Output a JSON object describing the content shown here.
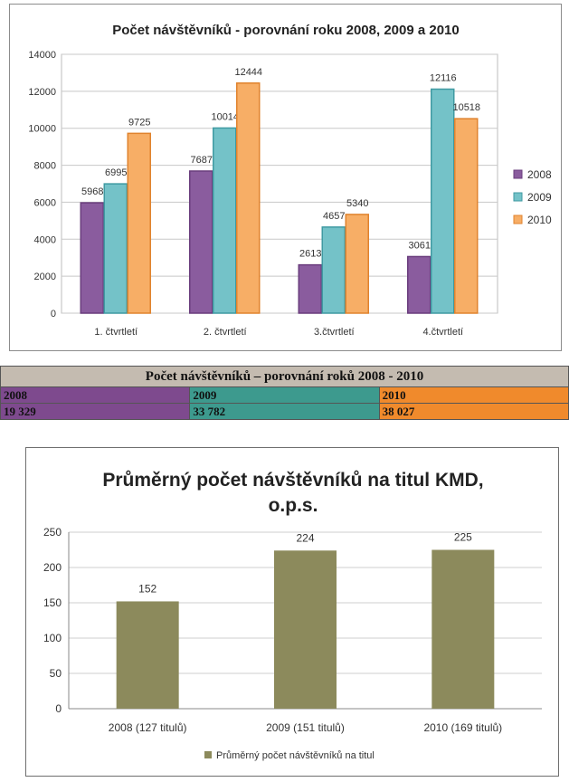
{
  "chart_data": [
    {
      "type": "bar",
      "title": "Počet návštěvníků - porovnání roku 2008, 2009 a 2010",
      "categories": [
        "1. čtvrtletí",
        "2. čtvrtletí",
        "3.čtvrtletí",
        "4.čtvrtletí"
      ],
      "series": [
        {
          "name": "2008",
          "values": [
            5968,
            7687,
            2613,
            3061
          ]
        },
        {
          "name": "2009",
          "values": [
            6995,
            10014,
            4657,
            12116
          ]
        },
        {
          "name": "2010",
          "values": [
            9725,
            12444,
            5340,
            10518
          ]
        }
      ],
      "yticks": [
        "0",
        "2000",
        "4000",
        "6000",
        "8000",
        "10000",
        "12000",
        "14000"
      ],
      "ylim": [
        0,
        14000
      ],
      "grid": true,
      "legend": "right",
      "colors": [
        "#8a5c9e",
        "#74c2c8",
        "#f7ae66"
      ],
      "edge_colors": [
        "#6a3d7d",
        "#3f9aa2",
        "#e0832e"
      ]
    },
    {
      "type": "bar",
      "title": "Průměrný počet návštěvníků na titul KMD, o.p.s.",
      "title_lines": [
        "Průměrný počet návštěvníků na titul KMD,",
        "o.p.s."
      ],
      "categories": [
        "2008 (127 titulů)",
        "2009 (151 titulů)",
        "2010 (169 titulů)"
      ],
      "series": [
        {
          "name": "Průměrný počet návštěvníků na titul",
          "values": [
            152,
            224,
            225
          ]
        }
      ],
      "yticks": [
        "0",
        "50",
        "100",
        "150",
        "200",
        "250"
      ],
      "ylim": [
        0,
        250
      ],
      "grid": true,
      "legend": "bottom",
      "colors": [
        "#8c8a5c"
      ]
    }
  ],
  "table": {
    "title": "Počet návštěvníků – porovnání roků 2008 - 2010",
    "headers": [
      "2008",
      "2009",
      "2010"
    ],
    "values": [
      "19 329",
      "33 782",
      "38 027"
    ]
  }
}
